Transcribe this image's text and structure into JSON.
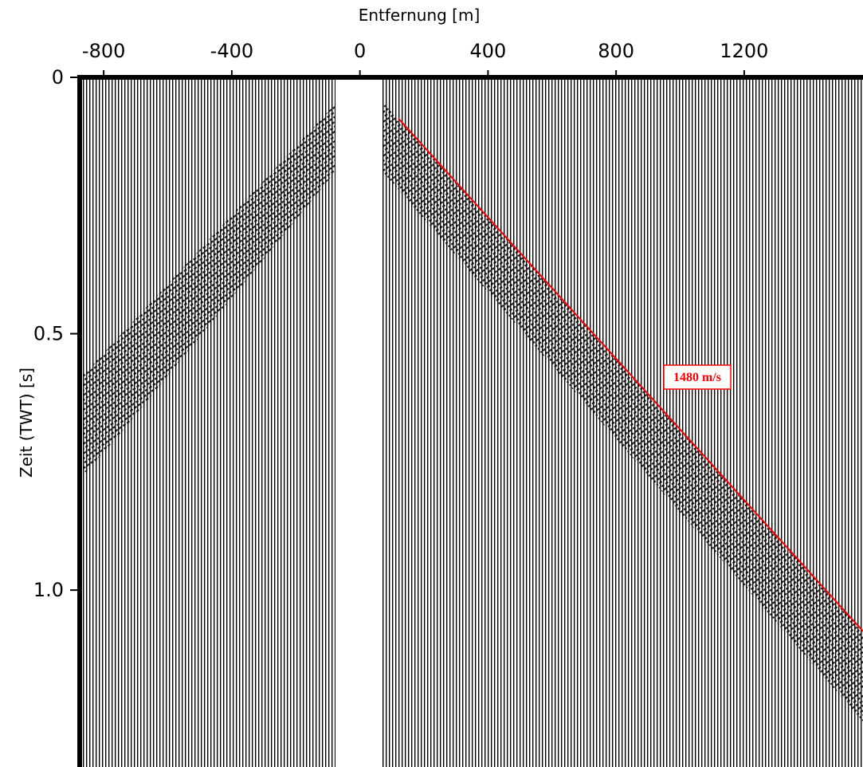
{
  "chart_data": {
    "type": "line",
    "x_label": "Entfernung [m]",
    "y_label": "Zeit (TWT) [s]",
    "xlim": [
      -875,
      1571
    ],
    "xticks": [
      -800,
      -400,
      0,
      400,
      800,
      1200
    ],
    "ylim": [
      0,
      1.345
    ],
    "yticks": [
      0,
      0.5,
      {
        "value": 1,
        "label": "1.0"
      }
    ],
    "y_inverted": true,
    "xaxis_position": "top",
    "series": [
      {
        "color": "#ff0000",
        "x": [
          120,
          1571
        ],
        "values": [
          0.08,
          1.08
        ]
      }
    ],
    "annotation": "1480 m/s"
  }
}
